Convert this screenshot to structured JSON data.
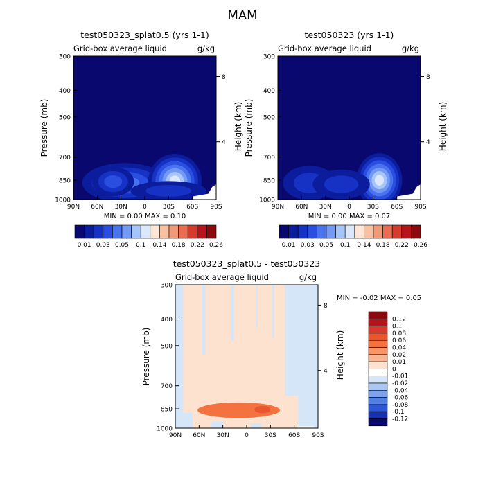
{
  "figure_title": "MAM",
  "chart_data": [
    {
      "type": "heatmap",
      "panel": "top-left",
      "title": "test050323_splat0.5 (yrs 1-1)",
      "variable": "Grid-box average liquid",
      "units": "g/kg",
      "xlabel": "",
      "ylabel": "Pressure (mb)",
      "y2label": "Height (km)",
      "x_ticks": [
        "90N",
        "60N",
        "30N",
        "0",
        "30S",
        "60S",
        "90S"
      ],
      "y_ticks": [
        "300",
        "400",
        "500",
        "700",
        "850",
        "1000"
      ],
      "y_tick_values": [
        300,
        400,
        500,
        700,
        850,
        1000
      ],
      "y2_ticks": [
        "8",
        "4"
      ],
      "y2_tick_pressures": [
        356,
        616
      ],
      "xlim": [
        90,
        -90
      ],
      "ylim": [
        1000,
        300
      ],
      "stats": "MIN =    0.00   MAX =    0.10",
      "colorbar": {
        "orientation": "horizontal",
        "labels": [
          "0.01",
          "0.03",
          "0.05",
          "0.1",
          "0.14",
          "0.18",
          "0.22",
          "0.26"
        ],
        "colors": [
          "#08086e",
          "#0b1c9c",
          "#1532c4",
          "#2a4ee0",
          "#4a73ee",
          "#7399f4",
          "#a7c5f9",
          "#dbe8fc",
          "#fde6d6",
          "#f8c2a2",
          "#f29a78",
          "#e86d52",
          "#d63a2c",
          "#b5141a",
          "#8c0a0e"
        ]
      },
      "blobs": [
        {
          "lat": 25,
          "p": 868,
          "sx": 45,
          "sy": 80,
          "level": 3
        },
        {
          "lat": -38,
          "p": 855,
          "sx": 28,
          "sy": 110,
          "level": 6
        },
        {
          "lat": 40,
          "p": 860,
          "sx": 22,
          "sy": 60,
          "level": 2
        },
        {
          "lat": -30,
          "p": 930,
          "sx": 40,
          "sy": 40,
          "level": 1
        }
      ],
      "max_value": 0.1
    },
    {
      "type": "heatmap",
      "panel": "top-right",
      "title": "test050323 (yrs 1-1)",
      "variable": "Grid-box average liquid",
      "units": "g/kg",
      "xlabel": "",
      "ylabel": "Pressure (mb)",
      "y2label": "Height (km)",
      "x_ticks": [
        "90N",
        "60N",
        "30N",
        "0",
        "30S",
        "60S",
        "90S"
      ],
      "y_ticks": [
        "300",
        "400",
        "500",
        "700",
        "850",
        "1000"
      ],
      "y_tick_values": [
        300,
        400,
        500,
        700,
        850,
        1000
      ],
      "y2_ticks": [
        "8",
        "4"
      ],
      "y2_tick_pressures": [
        356,
        616
      ],
      "xlim": [
        90,
        -90
      ],
      "ylim": [
        1000,
        300
      ],
      "stats": "MIN =    0.00   MAX =    0.07",
      "colorbar": {
        "orientation": "horizontal",
        "labels": [
          "0.01",
          "0.03",
          "0.05",
          "0.1",
          "0.14",
          "0.18",
          "0.22",
          "0.26"
        ],
        "colors": [
          "#08086e",
          "#0b1c9c",
          "#1532c4",
          "#2a4ee0",
          "#4a73ee",
          "#7399f4",
          "#a7c5f9",
          "#dbe8fc",
          "#fde6d6",
          "#f8c2a2",
          "#f29a78",
          "#e86d52",
          "#d63a2c",
          "#b5141a",
          "#8c0a0e"
        ]
      },
      "blobs": [
        {
          "lat": -38,
          "p": 850,
          "sx": 24,
          "sy": 110,
          "level": 6
        },
        {
          "lat": 50,
          "p": 870,
          "sx": 28,
          "sy": 70,
          "level": 1
        },
        {
          "lat": 10,
          "p": 880,
          "sx": 30,
          "sy": 60,
          "level": 1
        }
      ],
      "max_value": 0.07
    },
    {
      "type": "heatmap",
      "panel": "bottom",
      "title": "test050323_splat0.5 - test050323",
      "variable": "Grid-box average liquid",
      "units": "g/kg",
      "xlabel": "",
      "ylabel": "Pressure (mb)",
      "y2label": "Height (km)",
      "x_ticks": [
        "90N",
        "60N",
        "30N",
        "0",
        "30S",
        "60S",
        "90S"
      ],
      "y_ticks": [
        "300",
        "400",
        "500",
        "700",
        "850",
        "1000"
      ],
      "y_tick_values": [
        300,
        400,
        500,
        700,
        850,
        1000
      ],
      "y2_ticks": [
        "8",
        "4"
      ],
      "y2_tick_pressures": [
        356,
        616
      ],
      "xlim": [
        90,
        -90
      ],
      "ylim": [
        1000,
        300
      ],
      "stats": "MIN =   -0.02   MAX =    0.05",
      "colorbar": {
        "orientation": "vertical",
        "labels": [
          "0.12",
          "0.1",
          "0.08",
          "0.06",
          "0.04",
          "0.02",
          "0.01",
          "0",
          "-0.01",
          "-0.02",
          "-0.04",
          "-0.06",
          "-0.08",
          "-0.1",
          "-0.12"
        ],
        "colors": [
          "#8c0a0e",
          "#b5141a",
          "#d63a2c",
          "#e8552f",
          "#f47240",
          "#f79468",
          "#f9b594",
          "#fde3cf",
          "#ffffff",
          "#d5e6f9",
          "#aac8f2",
          "#7fa3ea",
          "#527fe2",
          "#2e56d8",
          "#1530b0",
          "#08086e"
        ]
      },
      "blobs": [
        {
          "lat": 10,
          "p": 860,
          "sx": 52,
          "sy": 38,
          "level": 2
        },
        {
          "lat": -20,
          "p": 855,
          "sx": 10,
          "sy": 18,
          "level": 3
        }
      ],
      "max_value": 0.05
    }
  ]
}
